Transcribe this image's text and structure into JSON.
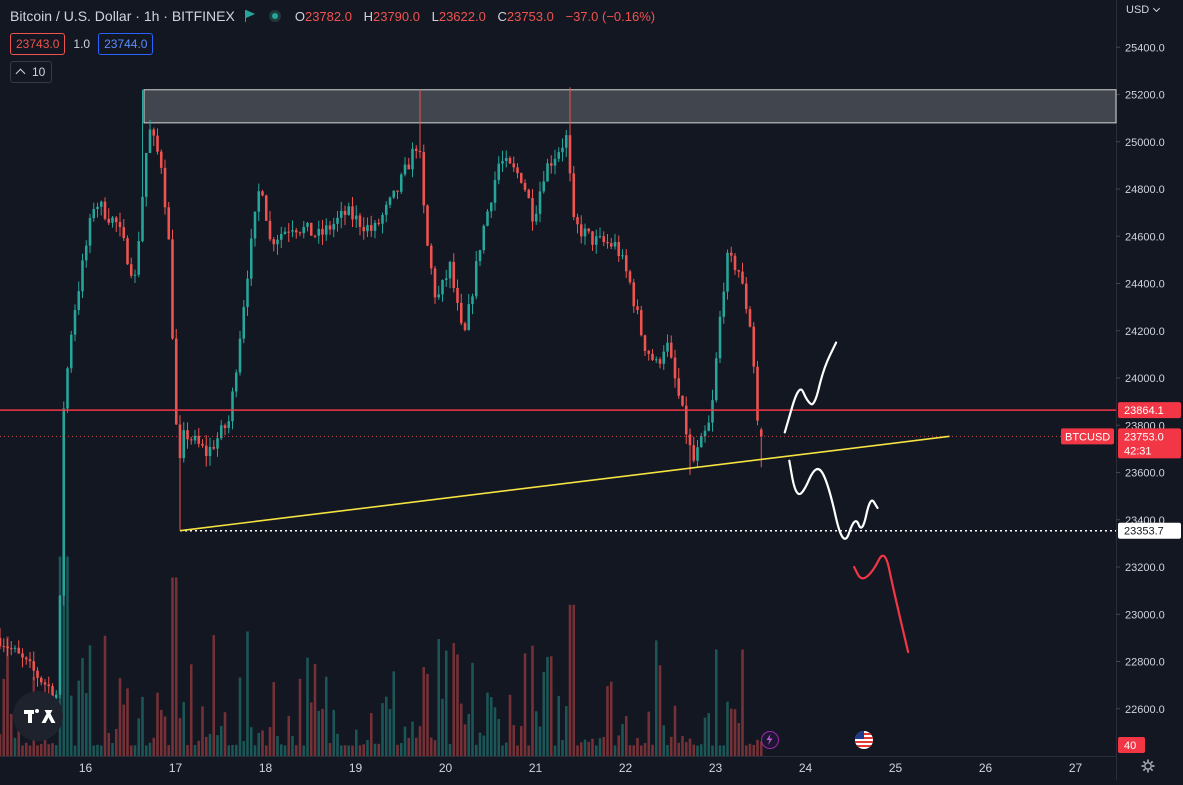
{
  "header": {
    "title": "Bitcoin / U.S. Dollar · 1h · BITFINEX",
    "ohlc": [
      {
        "k": "O",
        "v": "23782.0"
      },
      {
        "k": "H",
        "v": "23790.0"
      },
      {
        "k": "L",
        "v": "23622.0"
      },
      {
        "k": "C",
        "v": "23753.0"
      }
    ],
    "change": "−37.0 (−0.16%)",
    "sell_price": "23743.0",
    "spread": "1.0",
    "buy_price": "23744.0",
    "indicator_count": "10",
    "currency": "USD"
  },
  "colors": {
    "background": "#131722",
    "up": "#26a69a",
    "down": "#ef5350",
    "horizontal_line": "#f23645",
    "trendline": "#f5e342",
    "resistance_zone": "#4a4d55"
  },
  "chart_data": {
    "type": "candlestick",
    "ylim": [
      22400,
      25600
    ],
    "y_ticks": [
      "25400.0",
      "25200.0",
      "25000.0",
      "24800.0",
      "24600.0",
      "24400.0",
      "24200.0",
      "24000.0",
      "23800.0",
      "23600.0",
      "23400.0",
      "23200.0",
      "23000.0",
      "22800.0",
      "22600.0"
    ],
    "y_tick_values": [
      25400,
      25200,
      25000,
      24800,
      24600,
      24400,
      24200,
      24000,
      23800,
      23600,
      23400,
      23200,
      23000,
      22800,
      22600
    ],
    "x_ticks": [
      "16",
      "17",
      "18",
      "19",
      "20",
      "21",
      "22",
      "23",
      "24",
      "25",
      "26",
      "27"
    ],
    "x_range": [
      15.05,
      27.45
    ],
    "price_labels": [
      {
        "label": "23864.1",
        "value": 23864.1,
        "kind": "line"
      },
      {
        "label": "23753.0",
        "value": 23753.0,
        "kind": "last",
        "symbol": "BTCUSD",
        "countdown": "42:31"
      },
      {
        "label": "23353.7",
        "value": 23353.7,
        "kind": "dotted"
      }
    ],
    "volume_axis_label": "40",
    "horizontal_line": 23864.1,
    "dotted_level": {
      "value": 23353.7,
      "from_day": 17.05
    },
    "resistance_zone": {
      "from_day": 16.65,
      "top": 25220,
      "bottom": 25080
    },
    "trendline": {
      "start": {
        "day": 17.05,
        "value": 23353.7
      },
      "end": {
        "day": 25.6,
        "value": 23753
      }
    },
    "drawings": [
      {
        "color": "#ffffff",
        "points": [
          [
            23.77,
            23770
          ],
          [
            23.93,
            23980
          ],
          [
            24.02,
            23900
          ],
          [
            24.1,
            23880
          ],
          [
            24.2,
            24040
          ],
          [
            24.34,
            24150
          ]
        ]
      },
      {
        "color": "#ffffff",
        "points": [
          [
            23.82,
            23650
          ],
          [
            23.88,
            23520
          ],
          [
            23.96,
            23500
          ],
          [
            24.12,
            23640
          ],
          [
            24.25,
            23560
          ],
          [
            24.42,
            23270
          ],
          [
            24.55,
            23420
          ],
          [
            24.63,
            23340
          ],
          [
            24.72,
            23500
          ],
          [
            24.8,
            23450
          ]
        ]
      },
      {
        "color": "#f23645",
        "points": [
          [
            24.54,
            23200
          ],
          [
            24.62,
            23140
          ],
          [
            24.75,
            23180
          ],
          [
            24.88,
            23280
          ],
          [
            24.98,
            23100
          ],
          [
            25.14,
            22840
          ]
        ]
      }
    ],
    "anchors": [
      {
        "day": 15.05,
        "value": 22900
      },
      {
        "day": 15.7,
        "value": 22650
      },
      {
        "day": 15.75,
        "value": 23850
      },
      {
        "day": 15.85,
        "value": 24230
      },
      {
        "day": 16.1,
        "value": 24750
      },
      {
        "day": 16.35,
        "value": 24650
      },
      {
        "day": 16.55,
        "value": 24420
      },
      {
        "day": 16.7,
        "value": 25060
      },
      {
        "day": 16.85,
        "value": 24900
      },
      {
        "day": 16.93,
        "value": 24550
      },
      {
        "day": 17.03,
        "value": 23580
      },
      {
        "day": 17.1,
        "value": 23770
      },
      {
        "day": 17.35,
        "value": 23680
      },
      {
        "day": 17.6,
        "value": 23820
      },
      {
        "day": 17.8,
        "value": 24450
      },
      {
        "day": 17.95,
        "value": 24850
      },
      {
        "day": 18.05,
        "value": 24580
      },
      {
        "day": 18.3,
        "value": 24650
      },
      {
        "day": 18.6,
        "value": 24600
      },
      {
        "day": 18.9,
        "value": 24700
      },
      {
        "day": 19.2,
        "value": 24620
      },
      {
        "day": 19.45,
        "value": 24780
      },
      {
        "day": 19.7,
        "value": 25010
      },
      {
        "day": 19.78,
        "value": 24600
      },
      {
        "day": 19.9,
        "value": 24320
      },
      {
        "day": 20.05,
        "value": 24470
      },
      {
        "day": 20.2,
        "value": 24150
      },
      {
        "day": 20.4,
        "value": 24600
      },
      {
        "day": 20.6,
        "value": 24920
      },
      {
        "day": 20.85,
        "value": 24850
      },
      {
        "day": 20.98,
        "value": 24680
      },
      {
        "day": 21.1,
        "value": 24880
      },
      {
        "day": 21.35,
        "value": 25020
      },
      {
        "day": 21.42,
        "value": 24650
      },
      {
        "day": 21.65,
        "value": 24580
      },
      {
        "day": 21.9,
        "value": 24560
      },
      {
        "day": 22.05,
        "value": 24400
      },
      {
        "day": 22.2,
        "value": 24150
      },
      {
        "day": 22.35,
        "value": 24050
      },
      {
        "day": 22.45,
        "value": 24160
      },
      {
        "day": 22.65,
        "value": 23820
      },
      {
        "day": 22.75,
        "value": 23640
      },
      {
        "day": 22.95,
        "value": 23820
      },
      {
        "day": 23.05,
        "value": 24250
      },
      {
        "day": 23.12,
        "value": 24500
      },
      {
        "day": 23.25,
        "value": 24470
      },
      {
        "day": 23.4,
        "value": 24200
      },
      {
        "day": 23.47,
        "value": 23800
      },
      {
        "day": 23.53,
        "value": 23760
      }
    ],
    "volume_bars": {
      "count": 200,
      "max_value": 60
    },
    "events": [
      {
        "day": 23.52,
        "icon": "lightning-icon"
      },
      {
        "day": 24.58,
        "icon": "us-flag-icon"
      }
    ]
  }
}
